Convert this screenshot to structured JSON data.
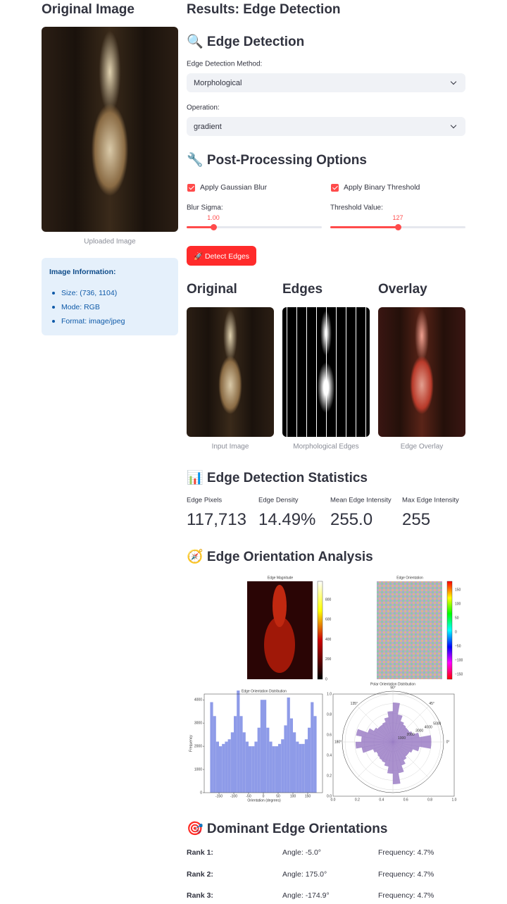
{
  "left_title": "Original Image",
  "left_caption": "Uploaded Image",
  "info": {
    "title": "Image Information:",
    "items": [
      "Size: (736, 1104)",
      "Mode: RGB",
      "Format: image/jpeg"
    ]
  },
  "right_title": "Results: Edge Detection",
  "edge": {
    "heading": "🔍 Edge Detection",
    "method_label": "Edge Detection Method:",
    "method": "Morphological",
    "operation_label": "Operation:",
    "operation": "gradient"
  },
  "post": {
    "heading": "🔧 Post-Processing Options",
    "checkboxes": [
      "Apply Gaussian Blur",
      "Apply Binary Threshold"
    ],
    "sliders": [
      {
        "label": "Blur Sigma:",
        "value": "1.00"
      },
      {
        "label": "Threshold Value:",
        "value": "127"
      }
    ]
  },
  "button": "🚀 Detect Edges",
  "images": [
    {
      "title": "Original",
      "caption": "Input Image"
    },
    {
      "title": "Edges",
      "caption": "Morphological Edges"
    },
    {
      "title": "Overlay",
      "caption": "Edge Overlay"
    }
  ],
  "stats": {
    "heading": "📊 Edge Detection Statistics",
    "metrics": [
      {
        "label": "Edge Pixels",
        "value": "117,713"
      },
      {
        "label": "Edge Density",
        "value": "14.49%"
      },
      {
        "label": "Mean Edge Intensity",
        "value": "255.0"
      },
      {
        "label": "Max Edge Intensity",
        "value": "255"
      }
    ]
  },
  "orientation": {
    "heading": "🧭 Edge Orientation Analysis",
    "magnitude": {
      "title": "Edge Magnitude",
      "colorbar": [
        "800",
        "600",
        "400",
        "200",
        "0"
      ]
    },
    "angle": {
      "title": "Edge Orientation",
      "colorbar": [
        "150",
        "100",
        "50",
        "0",
        "−50",
        "−100",
        "−150"
      ]
    },
    "histogram": {
      "type": "bar",
      "title": "Edge Orientation Distribution",
      "xlabel": "Orientation (degrees)",
      "ylabel": "Frequency",
      "bins": [
        -180,
        -170,
        -160,
        -150,
        -140,
        -130,
        -120,
        -110,
        -100,
        -90,
        -80,
        -70,
        -60,
        -50,
        -40,
        -30,
        -20,
        -10,
        0,
        10,
        20,
        30,
        40,
        50,
        60,
        70,
        80,
        90,
        100,
        110,
        120,
        130,
        140,
        150,
        160,
        170,
        180
      ],
      "counts": [
        3900,
        3300,
        2200,
        2000,
        2100,
        2200,
        2300,
        2600,
        3300,
        4400,
        3300,
        2600,
        2200,
        2000,
        2000,
        2200,
        2800,
        4000,
        4000,
        2800,
        2200,
        2000,
        2000,
        2100,
        2300,
        2900,
        4100,
        3200,
        2600,
        2200,
        2100,
        2100,
        2300,
        2800,
        3900,
        3300
      ],
      "color": "#8e9be8",
      "xlim": [
        -200,
        200
      ],
      "ylim": [
        0,
        4250
      ],
      "xticks": [
        -150,
        -100,
        -50,
        0,
        50,
        100,
        150
      ],
      "yticks": [
        0,
        1000,
        2000,
        3000,
        4000
      ]
    },
    "polar": {
      "type": "polar",
      "title": "Polar Orientation Distribution",
      "color": "#9c7fc6",
      "rlim": [
        0,
        5300
      ],
      "rticks": [
        1000,
        2000,
        3000,
        4000,
        5000
      ],
      "angle_labels": [
        "0°",
        "45°",
        "90°",
        "135°",
        "180°"
      ],
      "frame_ticks": [
        "0.0",
        "0.2",
        "0.4",
        "0.6",
        "0.8",
        "1.0"
      ]
    }
  },
  "dominant": {
    "heading": "🎯 Dominant Edge Orientations",
    "rows": [
      {
        "rank": "Rank 1:",
        "angle": "Angle: -5.0°",
        "frequency": "Frequency: 4.7%"
      },
      {
        "rank": "Rank 2:",
        "angle": "Angle: 175.0°",
        "frequency": "Frequency: 4.7%"
      },
      {
        "rank": "Rank 3:",
        "angle": "Angle: -174.9°",
        "frequency": "Frequency: 4.7%"
      }
    ]
  }
}
